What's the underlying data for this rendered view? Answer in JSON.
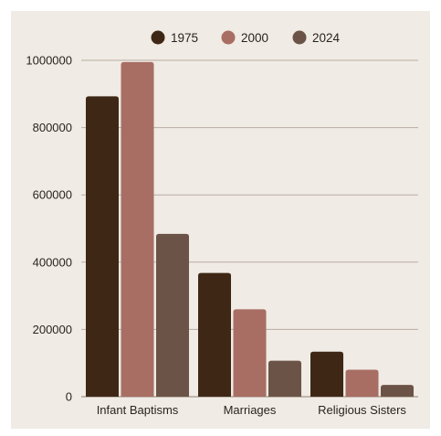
{
  "chart_data": {
    "type": "bar",
    "categories": [
      "Infant Baptisms",
      "Marriages",
      "Religious Sisters"
    ],
    "series": [
      {
        "name": "1975",
        "values": [
          893000,
          368000,
          134000
        ]
      },
      {
        "name": "2000",
        "values": [
          995000,
          260000,
          80000
        ]
      },
      {
        "name": "2024",
        "values": [
          484000,
          107000,
          35000
        ]
      }
    ],
    "ylim": [
      0,
      1000000
    ],
    "yticks": [
      "0",
      "200000",
      "400000",
      "600000",
      "800000",
      "1000000"
    ],
    "grid": true,
    "legend_position": "top-center",
    "colors": [
      "#3e2815",
      "#a86e63",
      "#6b5447"
    ],
    "background": "#f0ebe4"
  }
}
